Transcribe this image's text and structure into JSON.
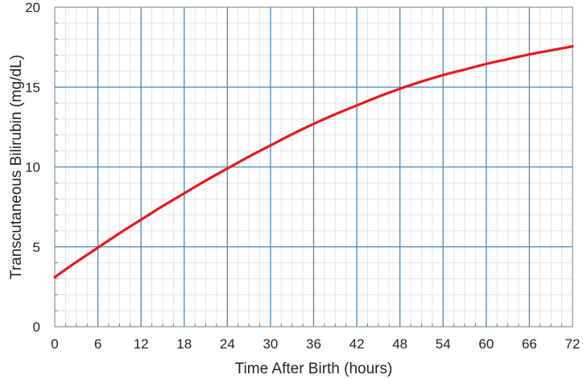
{
  "chart_data": {
    "type": "line",
    "title": "",
    "xlabel": "Time After Birth (hours)",
    "ylabel": "Transcutaneous Bilirubin (mg/dL)",
    "xlim": [
      0,
      72
    ],
    "ylim": [
      0,
      20
    ],
    "x_ticks": [
      0,
      6,
      12,
      18,
      24,
      30,
      36,
      42,
      48,
      54,
      60,
      66,
      72
    ],
    "y_ticks": [
      0,
      5,
      10,
      15,
      20
    ],
    "grid": true,
    "legend": "none",
    "series": [
      {
        "color": "#e41a1c",
        "x": [
          0,
          3,
          6,
          9,
          12,
          15,
          18,
          21,
          24,
          27,
          30,
          33,
          36,
          39,
          42,
          45,
          48,
          51,
          54,
          57,
          60,
          63,
          66,
          69,
          72
        ],
        "y": [
          3.1,
          4.05,
          4.95,
          5.85,
          6.7,
          7.55,
          8.35,
          9.15,
          9.9,
          10.65,
          11.35,
          12.05,
          12.7,
          13.3,
          13.85,
          14.4,
          14.9,
          15.35,
          15.75,
          16.1,
          16.45,
          16.75,
          17.05,
          17.3,
          17.55
        ]
      }
    ]
  },
  "colors": {
    "major_grid": "#4a86b8",
    "minor_grid": "#e4e4e4",
    "frame": "#7a7a7a"
  }
}
